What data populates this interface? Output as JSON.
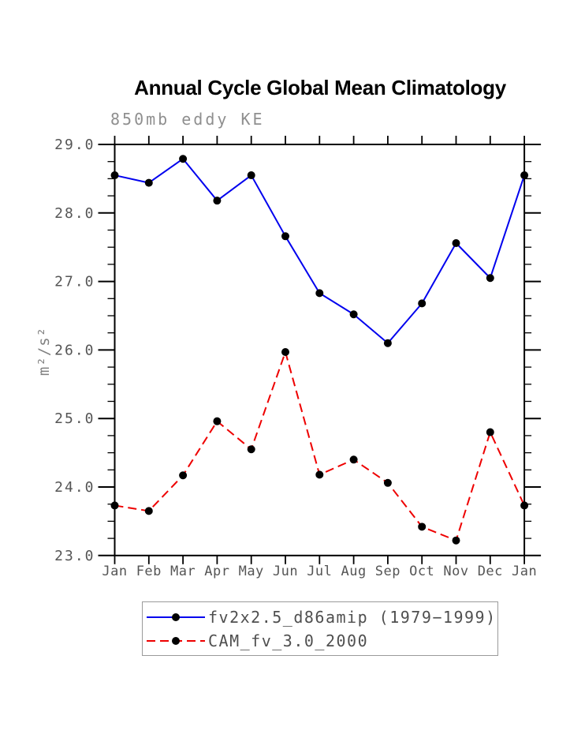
{
  "page": {
    "background": "#ffffff"
  },
  "chart_data": {
    "type": "line",
    "title": "Annual Cycle Global Mean Climatology",
    "subtitle": "850mb eddy KE",
    "xlabel": "",
    "ylabel": "m²/s²",
    "categories": [
      "Jan",
      "Feb",
      "Mar",
      "Apr",
      "May",
      "Jun",
      "Jul",
      "Aug",
      "Sep",
      "Oct",
      "Nov",
      "Dec",
      "Jan"
    ],
    "ylim": [
      23.0,
      29.0
    ],
    "ytick_interval": 1.0,
    "yminor_interval": 0.25,
    "ytick_labels": [
      "23.0",
      "24.0",
      "25.0",
      "26.0",
      "27.0",
      "28.0",
      "29.0"
    ],
    "grid": false,
    "legend_position": "bottom",
    "series": [
      {
        "name": "fv2x2.5_d86amip (1979−1999)",
        "color": "#0000ee",
        "style": "solid",
        "marker": "filled-circle",
        "marker_color": "#000000",
        "values": [
          28.55,
          28.44,
          28.79,
          28.18,
          28.55,
          27.66,
          26.83,
          26.52,
          26.1,
          26.68,
          27.56,
          27.05,
          28.55
        ]
      },
      {
        "name": "CAM_fv_3.0_2000",
        "color": "#ee0000",
        "style": "dashed",
        "marker": "filled-circle",
        "marker_color": "#000000",
        "values": [
          23.73,
          23.65,
          24.17,
          24.96,
          24.55,
          25.97,
          24.18,
          24.4,
          24.06,
          23.42,
          23.22,
          24.8,
          23.73
        ]
      }
    ],
    "colors": {
      "axis": "#000000",
      "tick_label": "#555555",
      "subtitle_text": "#8f8f8f",
      "ylabel_text": "#808080",
      "legend_border": "#9a9a9a",
      "legend_text": "#4f4f4f"
    }
  }
}
